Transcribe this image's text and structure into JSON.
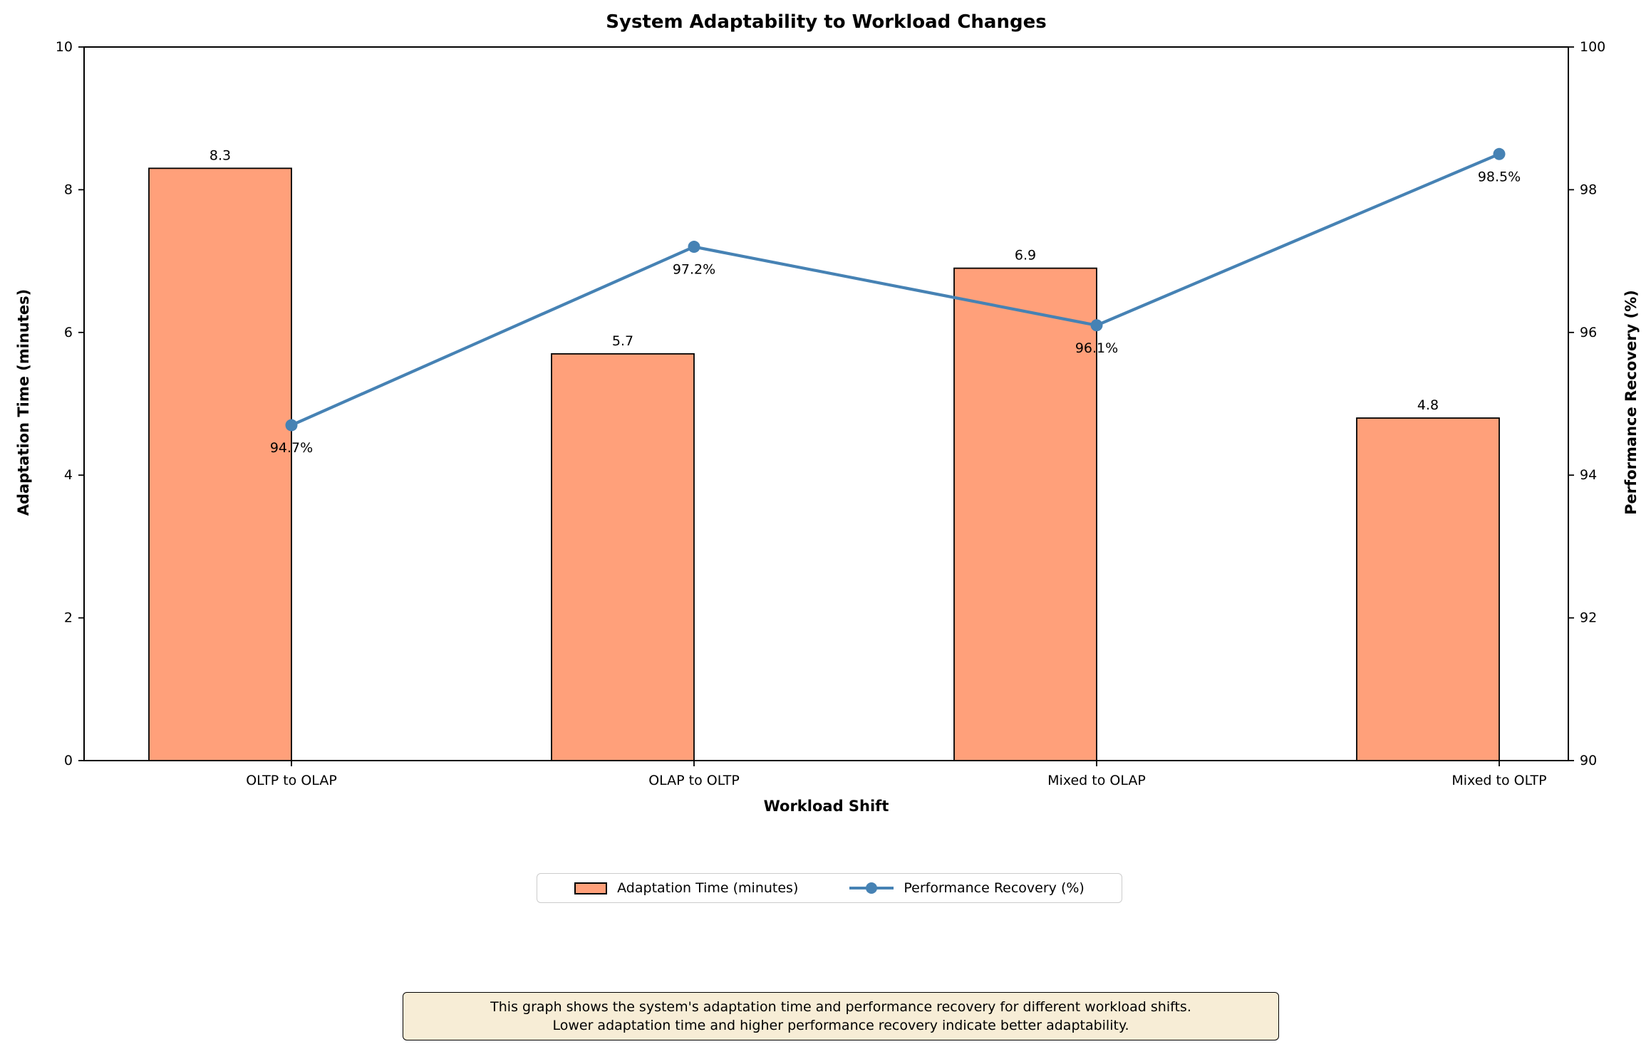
{
  "chart_data": {
    "type": "bar",
    "title": "System Adaptability to Workload Changes",
    "xlabel": "Workload Shift",
    "ylabel_left": "Adaptation Time (minutes)",
    "ylabel_right": "Performance Recovery (%)",
    "categories": [
      "OLTP to OLAP",
      "OLAP to OLTP",
      "Mixed to OLAP",
      "Mixed to OLTP"
    ],
    "series": [
      {
        "name": "Adaptation Time (minutes)",
        "kind": "bar",
        "axis": "left",
        "values": [
          8.3,
          5.7,
          6.9,
          4.8
        ],
        "labels": [
          "8.3",
          "5.7",
          "6.9",
          "4.8"
        ]
      },
      {
        "name": "Performance Recovery (%)",
        "kind": "line",
        "axis": "right",
        "values": [
          94.7,
          97.2,
          96.1,
          98.5
        ],
        "labels": [
          "94.7%",
          "97.2%",
          "96.1%",
          "98.5%"
        ]
      }
    ],
    "y1_range": [
      0,
      10
    ],
    "y2_range": [
      90,
      100
    ],
    "y1_ticks": [
      "0",
      "2",
      "4",
      "6",
      "8",
      "10"
    ],
    "y2_ticks": [
      "90",
      "92",
      "94",
      "96",
      "98",
      "100"
    ],
    "grid": false,
    "legend_position": "below-center"
  },
  "legend": {
    "items": [
      {
        "label": "Adaptation Time (minutes)",
        "marker": "bar-swatch"
      },
      {
        "label": "Performance Recovery (%)",
        "marker": "line-with-dot"
      }
    ]
  },
  "caption": {
    "lines": [
      "This graph shows the system's adaptation time and performance recovery for different workload shifts.",
      "Lower adaptation time and higher performance recovery indicate better adaptability."
    ]
  },
  "colors": {
    "bar_fill": "#FFA07A",
    "bar_edge": "#000000",
    "line": "#4682B4",
    "text": "#000000",
    "legend_border": "#cccccc",
    "caption_bg": "#f7edd6",
    "caption_border": "#000000"
  }
}
